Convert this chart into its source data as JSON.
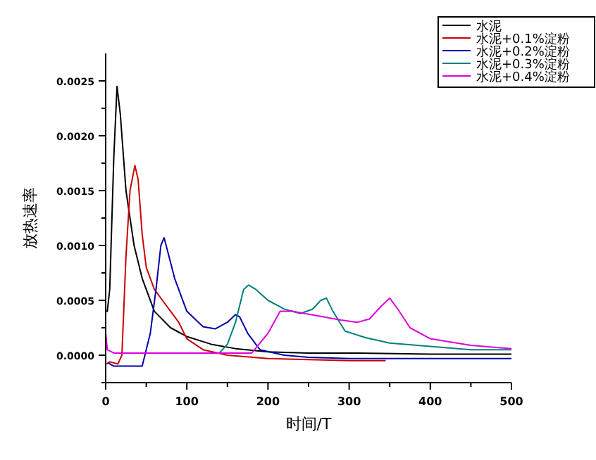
{
  "chart_data": {
    "type": "line",
    "xlabel": "时间/T",
    "ylabel": "放热速率",
    "xlim": [
      0,
      500
    ],
    "ylim": [
      -0.00025,
      0.00275
    ],
    "xticks": [
      0,
      {
        "value": 50,
        "label": null
      },
      100,
      {
        "value": 150,
        "label": null
      },
      200,
      {
        "value": 250,
        "label": null
      },
      300,
      {
        "value": 350,
        "label": null
      },
      400,
      {
        "value": 450,
        "label": null
      },
      500
    ],
    "yticks": [
      {
        "value": -0.00025,
        "label": null
      },
      {
        "value": 0,
        "label": "0.0000"
      },
      {
        "value": 0.00025,
        "label": null
      },
      {
        "value": 0.0005,
        "label": "0.0005"
      },
      {
        "value": 0.00075,
        "label": null
      },
      {
        "value": 0.001,
        "label": "0.0010"
      },
      {
        "value": 0.00125,
        "label": null
      },
      {
        "value": 0.0015,
        "label": "0.0015"
      },
      {
        "value": 0.00175,
        "label": null
      },
      {
        "value": 0.002,
        "label": "0.0020"
      },
      {
        "value": 0.00225,
        "label": null
      },
      {
        "value": 0.0025,
        "label": "0.0025"
      }
    ],
    "grid": false,
    "legend": "top right",
    "line_style": "solid",
    "series": [
      {
        "name": "水泥",
        "color": "#000000",
        "x": [
          0,
          2,
          5,
          10,
          14,
          18,
          25,
          35,
          45,
          60,
          80,
          100,
          130,
          160,
          200,
          250,
          300,
          400,
          500
        ],
        "values": [
          0.0004,
          0.0004,
          0.0006,
          0.0018,
          0.00245,
          0.0022,
          0.0015,
          0.001,
          0.0007,
          0.0004,
          0.00025,
          0.00017,
          0.0001,
          6e-05,
          3e-05,
          2e-05,
          2e-05,
          1e-05,
          1e-05
        ]
      },
      {
        "name": "水泥+0.1%淀粉",
        "color": "#cc0000",
        "x": [
          1,
          5,
          15,
          20,
          25,
          30,
          36,
          40,
          45,
          50,
          60,
          70,
          80,
          90,
          100,
          120,
          150,
          200,
          250,
          300,
          345
        ],
        "values": [
          -8e-05,
          -6e-05,
          -8e-05,
          0,
          0.0009,
          0.0015,
          0.00173,
          0.0016,
          0.0011,
          0.0008,
          0.0006,
          0.0005,
          0.0004,
          0.0003,
          0.00015,
          5e-05,
          0,
          -3e-05,
          -4e-05,
          -5e-05,
          -5e-05
        ]
      },
      {
        "name": "水泥+0.2%淀粉",
        "color": "#0000aa",
        "x": [
          3,
          10,
          45,
          55,
          62,
          68,
          72,
          78,
          85,
          100,
          120,
          135,
          150,
          160,
          165,
          175,
          190,
          220,
          250,
          300,
          400,
          500
        ],
        "values": [
          -7e-05,
          -0.0001,
          -0.0001,
          0.0002,
          0.0006,
          0.001,
          0.00107,
          0.0009,
          0.0007,
          0.0004,
          0.00026,
          0.00024,
          0.0003,
          0.00037,
          0.00035,
          0.0002,
          5e-05,
          0,
          -2e-05,
          -3e-05,
          -3e-05,
          -3e-05
        ]
      },
      {
        "name": "水泥+0.3%淀粉",
        "color": "#008080",
        "x": [
          50,
          140,
          150,
          160,
          170,
          176,
          185,
          200,
          220,
          240,
          255,
          265,
          272,
          280,
          295,
          320,
          350,
          400,
          450,
          500
        ],
        "values": [
          2e-05,
          2e-05,
          0.0001,
          0.0003,
          0.0006,
          0.00064,
          0.0006,
          0.0005,
          0.00042,
          0.00038,
          0.00042,
          0.0005,
          0.00052,
          0.0004,
          0.00022,
          0.00016,
          0.00011,
          8e-05,
          5e-05,
          5e-05
        ]
      },
      {
        "name": "水泥+0.4%淀粉",
        "color": "#dd00dd",
        "x": [
          0,
          2,
          10,
          100,
          180,
          200,
          215,
          230,
          260,
          290,
          310,
          325,
          340,
          350,
          360,
          375,
          400,
          450,
          500
        ],
        "values": [
          0.0002,
          5e-05,
          2e-05,
          2e-05,
          2e-05,
          0.0002,
          0.0004,
          0.0004,
          0.00036,
          0.00032,
          0.0003,
          0.00033,
          0.00045,
          0.00052,
          0.00042,
          0.00025,
          0.00015,
          9e-05,
          6e-05
        ]
      }
    ]
  }
}
